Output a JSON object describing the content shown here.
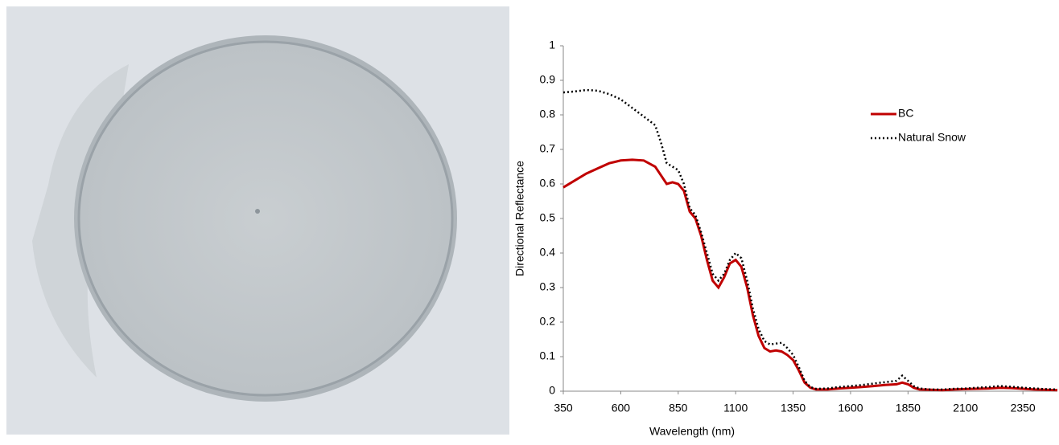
{
  "chart_data": {
    "type": "line",
    "x_label": "Wavelength (nm)",
    "y_label": "Directional Reflectance",
    "x": [
      350,
      400,
      450,
      500,
      550,
      600,
      650,
      700,
      750,
      775,
      800,
      825,
      850,
      875,
      900,
      925,
      950,
      975,
      1000,
      1025,
      1050,
      1075,
      1100,
      1125,
      1150,
      1175,
      1200,
      1225,
      1250,
      1275,
      1300,
      1325,
      1350,
      1375,
      1400,
      1425,
      1450,
      1500,
      1550,
      1600,
      1650,
      1700,
      1750,
      1800,
      1825,
      1850,
      1875,
      1900,
      1950,
      2000,
      2050,
      2100,
      2150,
      2200,
      2250,
      2300,
      2350,
      2400,
      2450,
      2500
    ],
    "series": [
      {
        "name": "BC",
        "color": "#c00000",
        "dash": "solid",
        "values": [
          0.59,
          0.61,
          0.63,
          0.645,
          0.66,
          0.668,
          0.67,
          0.668,
          0.65,
          0.625,
          0.6,
          0.605,
          0.6,
          0.58,
          0.52,
          0.5,
          0.45,
          0.38,
          0.32,
          0.3,
          0.33,
          0.37,
          0.38,
          0.36,
          0.3,
          0.22,
          0.16,
          0.125,
          0.115,
          0.118,
          0.115,
          0.105,
          0.09,
          0.06,
          0.025,
          0.01,
          0.005,
          0.005,
          0.008,
          0.01,
          0.012,
          0.015,
          0.018,
          0.02,
          0.025,
          0.02,
          0.01,
          0.005,
          0.004,
          0.003,
          0.005,
          0.006,
          0.007,
          0.008,
          0.01,
          0.009,
          0.007,
          0.005,
          0.004,
          0.003
        ]
      },
      {
        "name": "Natural Snow",
        "color": "#000000",
        "dash": "dotted",
        "values": [
          0.865,
          0.868,
          0.872,
          0.87,
          0.86,
          0.845,
          0.82,
          0.795,
          0.77,
          0.72,
          0.66,
          0.65,
          0.64,
          0.6,
          0.53,
          0.51,
          0.46,
          0.4,
          0.34,
          0.32,
          0.34,
          0.38,
          0.4,
          0.385,
          0.32,
          0.24,
          0.18,
          0.145,
          0.135,
          0.138,
          0.14,
          0.125,
          0.105,
          0.07,
          0.03,
          0.012,
          0.007,
          0.008,
          0.012,
          0.015,
          0.018,
          0.022,
          0.026,
          0.03,
          0.045,
          0.03,
          0.015,
          0.008,
          0.005,
          0.005,
          0.007,
          0.008,
          0.01,
          0.012,
          0.015,
          0.013,
          0.01,
          0.008,
          0.006,
          0.005
        ]
      }
    ],
    "xlim": [
      350,
      2500
    ],
    "xticks": [
      350,
      600,
      850,
      1100,
      1350,
      1600,
      1850,
      2100,
      2350
    ],
    "ylim": [
      0,
      1
    ],
    "yticks": [
      0,
      0.1,
      0.2,
      0.3,
      0.4,
      0.5,
      0.6,
      0.7,
      0.8,
      0.9,
      1
    ],
    "grid": false,
    "legend": "right"
  }
}
